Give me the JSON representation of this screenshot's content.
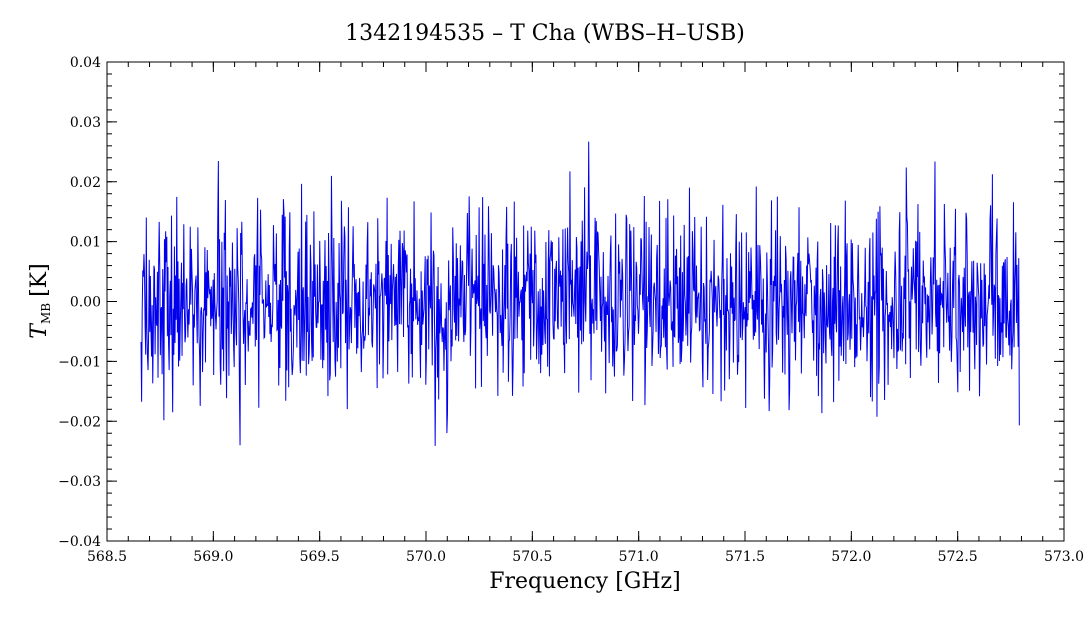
{
  "chart_data": {
    "type": "line",
    "title": "1342194535 – T Cha (WBS–H–USB)",
    "xlabel": "Frequency [GHz]",
    "ylabel_main": "T",
    "ylabel_sub": "MB",
    "ylabel_unit": "[K]",
    "xlim": [
      568.5,
      573.0
    ],
    "ylim": [
      -0.04,
      0.04
    ],
    "x_ticks": [
      "568.5",
      "569.0",
      "569.5",
      "570.0",
      "570.5",
      "571.0",
      "571.5",
      "572.0",
      "572.5",
      "573.0"
    ],
    "y_ticks": [
      "-0.04",
      "-0.03",
      "-0.02",
      "-0.01",
      "0.00",
      "0.01",
      "0.02",
      "0.03",
      "0.04"
    ],
    "grid": false,
    "legend": "none",
    "series": [
      {
        "color": "#0000ee",
        "x_range": [
          568.66,
          572.79
        ],
        "mean": 0.0,
        "noise_sigma": 0.0075,
        "y_min": -0.028,
        "y_max": 0.031,
        "points": 1500
      }
    ]
  }
}
